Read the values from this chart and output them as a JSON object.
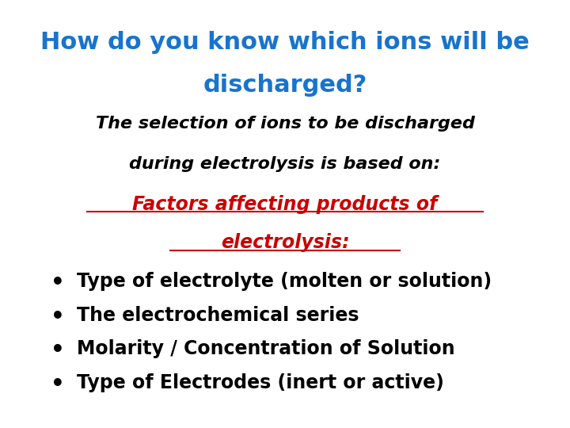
{
  "title_line1": "How do you know which ions will be",
  "title_line2": "discharged?",
  "title_color": "#1874CD",
  "subtitle_line1": "The selection of ions to be discharged",
  "subtitle_line2": "during electrolysis is based on:",
  "subtitle_color": "#000000",
  "factors_line1": "Factors affecting products of",
  "factors_line2": "electrolysis:",
  "factors_color": "#CC0000",
  "bullet_items": [
    "Type of electrolyte (molten or solution)",
    "The electrochemical series",
    "Molarity / Concentration of Solution",
    "Type of Electrodes (inert or active)"
  ],
  "bullet_color": "#000000",
  "background_color": "#ffffff"
}
